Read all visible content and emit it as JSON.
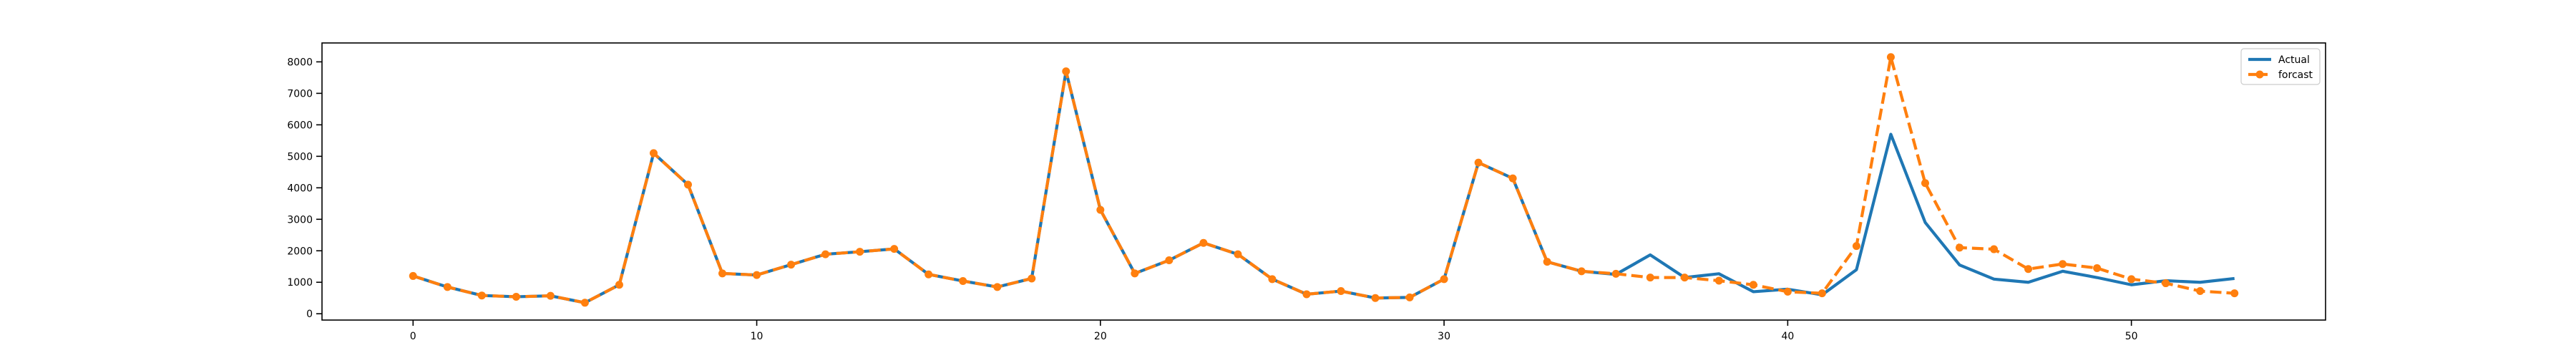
{
  "chart_data": {
    "type": "line",
    "title": "",
    "xlabel": "",
    "ylabel": "",
    "xlim": [
      -2.65,
      55.65
    ],
    "ylim": [
      -200,
      8600
    ],
    "xticks": [
      0,
      10,
      20,
      30,
      40,
      50
    ],
    "yticks": [
      0,
      1000,
      2000,
      3000,
      4000,
      5000,
      6000,
      7000,
      8000
    ],
    "grid": false,
    "legend_position": "top-right",
    "series": [
      {
        "name": "Actual",
        "color": "#1f77b4",
        "style": "solid",
        "marker": "none",
        "values": [
          1200,
          850,
          580,
          540,
          570,
          350,
          920,
          5100,
          4100,
          1280,
          1230,
          1560,
          1890,
          1970,
          2060,
          1250,
          1040,
          850,
          1120,
          7700,
          3300,
          1280,
          1700,
          2250,
          1890,
          1100,
          620,
          720,
          500,
          520,
          1100,
          4800,
          4300,
          1650,
          1350,
          1250,
          1870,
          1150,
          1270,
          700,
          780,
          600,
          1400,
          5700,
          2900,
          1550,
          1100,
          1000,
          1350,
          1150,
          920,
          1050,
          1000,
          1120
        ]
      },
      {
        "name": "forcast",
        "color": "#ff7f0e",
        "style": "dashed",
        "marker": "circle",
        "values": [
          1200,
          850,
          580,
          540,
          570,
          350,
          920,
          5100,
          4100,
          1280,
          1230,
          1560,
          1890,
          1970,
          2060,
          1250,
          1040,
          850,
          1120,
          7700,
          3300,
          1280,
          1700,
          2250,
          1890,
          1100,
          620,
          720,
          500,
          520,
          1100,
          4800,
          4300,
          1650,
          1350,
          1270,
          1150,
          1150,
          1050,
          920,
          700,
          650,
          2150,
          8150,
          4150,
          2100,
          2050,
          1420,
          1580,
          1450,
          1100,
          970,
          720,
          650
        ]
      }
    ]
  }
}
